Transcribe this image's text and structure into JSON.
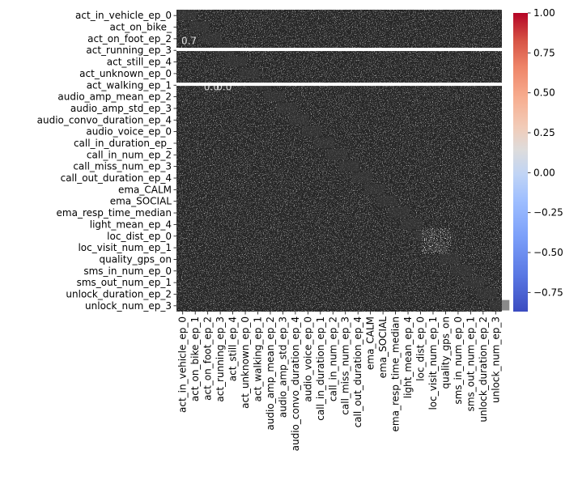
{
  "chart_data": {
    "type": "heatmap",
    "title": "",
    "xlabel": "",
    "ylabel": "",
    "row_labels": [
      "act_in_vehicle_ep_0",
      "act_on_bike_ep_1",
      "act_on_foot_ep_2",
      "act_running_ep_3",
      "act_still_ep_4",
      "act_unknown_ep_0",
      "act_walking_ep_1",
      "audio_amp_mean_ep_2",
      "audio_amp_std_ep_3",
      "audio_convo_duration_ep_4",
      "audio_voice_ep_0",
      "call_in_duration_ep_1",
      "call_in_num_ep_2",
      "call_miss_num_ep_3",
      "call_out_duration_ep_4",
      "ema_CALM",
      "ema_SOCIAL",
      "ema_resp_time_median",
      "light_mean_ep_4",
      "loc_dist_ep_0",
      "loc_visit_num_ep_1",
      "quality_gps_on",
      "sms_in_num_ep_0",
      "sms_out_num_ep_1",
      "unlock_duration_ep_2",
      "unlock_num_ep_3"
    ],
    "row_labels_visible": [
      "act_in_vehicle_ep_0",
      "act_on_bike_",
      "act_on_foot_ep_2",
      "act_running_ep_3",
      "act_still_ep_4",
      "act_unknown_ep_0",
      "act_walking_ep_1",
      "audio_amp_mean_ep_2",
      "audio_amp_std_ep_3",
      "audio_convo_duration_ep_4",
      "audio_voice_ep_0",
      "call_in_duration_ep_",
      "call_in_num_ep_2",
      "call_miss_num_ep_3",
      "call_out_duration_ep_4",
      "ema_CALM",
      "ema_SOCIAL",
      "ema_resp_time_median",
      "light_mean_ep_4",
      "loc_dist_ep_0",
      "loc_visit_num_ep_1",
      "quality_gps_on",
      "sms_in_num_ep_0",
      "sms_out_num_ep_1",
      "unlock_duration_ep_2",
      "unlock_num_ep_3"
    ],
    "col_labels": [
      "act_in_vehicle_ep_0",
      "act_on_bike_ep_1",
      "act_on_foot_ep_2",
      "act_running_ep_3",
      "act_still_ep_4",
      "act_unknown_ep_0",
      "act_walking_ep_1",
      "audio_amp_mean_ep_2",
      "audio_amp_std_ep_3",
      "audio_convo_duration_ep_4",
      "audio_voice_ep_0",
      "call_in_duration_ep_1",
      "call_in_num_ep_2",
      "call_miss_num_ep_3",
      "call_out_duration_ep_4",
      "ema_CALM",
      "ema_SOCIAL",
      "ema_resp_time_median",
      "light_mean_ep_4",
      "loc_dist_ep_0",
      "loc_visit_num_ep_1",
      "quality_gps_on",
      "sms_in_num_ep_0",
      "sms_out_num_ep_1",
      "unlock_duration_ep_2",
      "unlock_num_ep_3"
    ],
    "colorbar": {
      "cmap": "coolwarm",
      "min": -0.87,
      "max": 1.0,
      "ticks": [
        1.0,
        0.75,
        0.5,
        0.25,
        0.0,
        -0.25,
        -0.5,
        -0.75
      ],
      "tick_labels": [
        "1.00",
        "0.75",
        "0.50",
        "0.25",
        "0.00",
        "−0.25",
        "−0.50",
        "−0.75"
      ]
    },
    "annotation_samples": [
      "0.7",
      "0.0",
      "0.0"
    ],
    "white_band_rows": [
      3,
      6
    ],
    "annot_color": "#262626",
    "background_color": "#262626",
    "white_band_color": "#ffffff",
    "gps_block": {
      "rows": [
        20,
        21
      ],
      "cols": [
        20,
        21
      ]
    }
  }
}
